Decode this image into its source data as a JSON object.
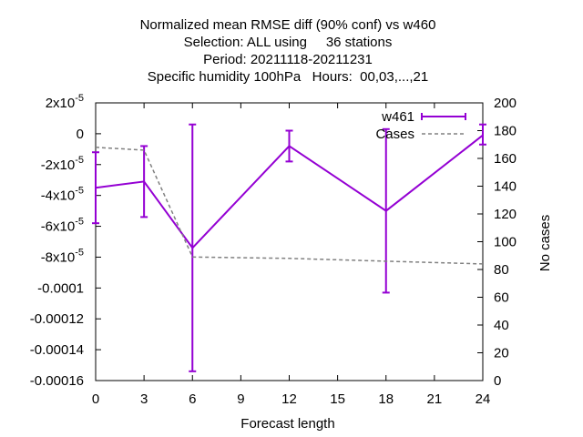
{
  "chart_data": {
    "type": "line",
    "title_lines": [
      "Normalized mean RMSE diff (90% conf) vs w460",
      "Selection: ALL using     36 stations",
      "Period: 20211118-20211231",
      "Specific humidity 100hPa   Hours:  00,03,...,21"
    ],
    "xlabel": "Forecast length",
    "ylabel_right": "No cases",
    "x_ticks": [
      0,
      3,
      6,
      9,
      12,
      15,
      18,
      21,
      24
    ],
    "xlim": [
      0,
      24
    ],
    "y_left": {
      "lim": [
        -0.00016,
        2e-05
      ],
      "ticks": [
        {
          "value": 2e-05,
          "label": "2x10",
          "exp": "-5"
        },
        {
          "value": 0,
          "label": "0",
          "exp": ""
        },
        {
          "value": -2e-05,
          "label": "-2x10",
          "exp": "-5"
        },
        {
          "value": -4e-05,
          "label": "-4x10",
          "exp": "-5"
        },
        {
          "value": -6e-05,
          "label": "-6x10",
          "exp": "-5"
        },
        {
          "value": -8e-05,
          "label": "-8x10",
          "exp": "-5"
        },
        {
          "value": -0.0001,
          "label": "-0.0001",
          "exp": ""
        },
        {
          "value": -0.00012,
          "label": "-0.00012",
          "exp": ""
        },
        {
          "value": -0.00014,
          "label": "-0.00014",
          "exp": ""
        },
        {
          "value": -0.00016,
          "label": "-0.00016",
          "exp": ""
        }
      ]
    },
    "y_right": {
      "lim": [
        0,
        200
      ],
      "ticks": [
        0,
        20,
        40,
        60,
        80,
        100,
        120,
        140,
        160,
        180,
        200
      ]
    },
    "legend_position": "top-right",
    "series": [
      {
        "name": "w461",
        "axis": "left",
        "color": "#9400d3",
        "style": "solid-with-errorbars",
        "x": [
          0,
          3,
          6,
          12,
          18,
          24
        ],
        "y": [
          -3.5e-05,
          -3.1e-05,
          -7.4e-05,
          -8e-06,
          -5e-05,
          -1e-06
        ],
        "err_low": [
          -5.8e-05,
          -5.4e-05,
          -0.000154,
          -1.8e-05,
          -0.000103,
          -7e-06
        ],
        "err_high": [
          -1.2e-05,
          -8e-06,
          6e-06,
          2e-06,
          3e-06,
          6e-06
        ]
      },
      {
        "name": "Cases",
        "axis": "right",
        "color": "#808080",
        "style": "dashed",
        "x": [
          0,
          3,
          6,
          12,
          18,
          24
        ],
        "y": [
          168,
          166,
          89,
          88,
          86,
          84
        ]
      }
    ]
  }
}
